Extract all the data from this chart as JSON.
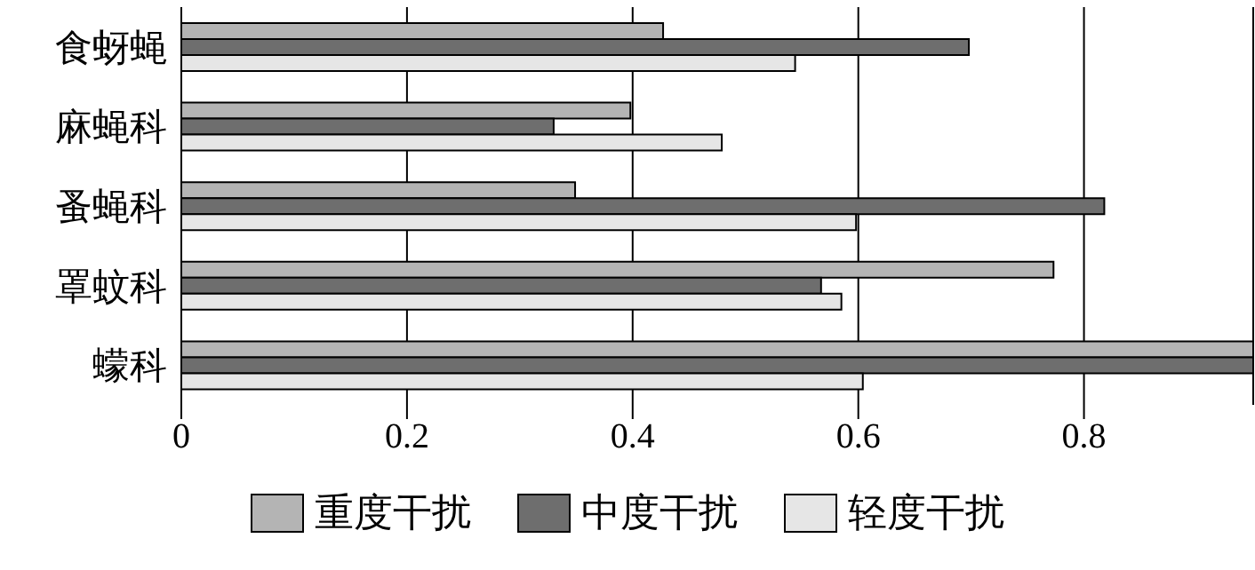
{
  "chart_data": {
    "type": "bar",
    "orientation": "horizontal",
    "categories": [
      "食蚜蝇",
      "麻蝇科",
      "蚤蝇科",
      "罩蚊科",
      "蠓科"
    ],
    "series": [
      {
        "name": "重度干扰",
        "color": "#b4b4b4",
        "values": [
          0.427,
          0.398,
          0.349,
          0.773,
          0.95
        ]
      },
      {
        "name": "中度干扰",
        "color": "#6e6e6e",
        "values": [
          0.698,
          0.33,
          0.818,
          0.567,
          0.95
        ]
      },
      {
        "name": "轻度干扰",
        "color": "#e6e6e6",
        "values": [
          0.544,
          0.479,
          0.598,
          0.585,
          0.604
        ]
      }
    ],
    "xlim": [
      0,
      0.95
    ],
    "xticks": [
      0,
      0.2,
      0.4,
      0.6,
      0.8
    ],
    "grid": "x",
    "legend": "bottom"
  }
}
